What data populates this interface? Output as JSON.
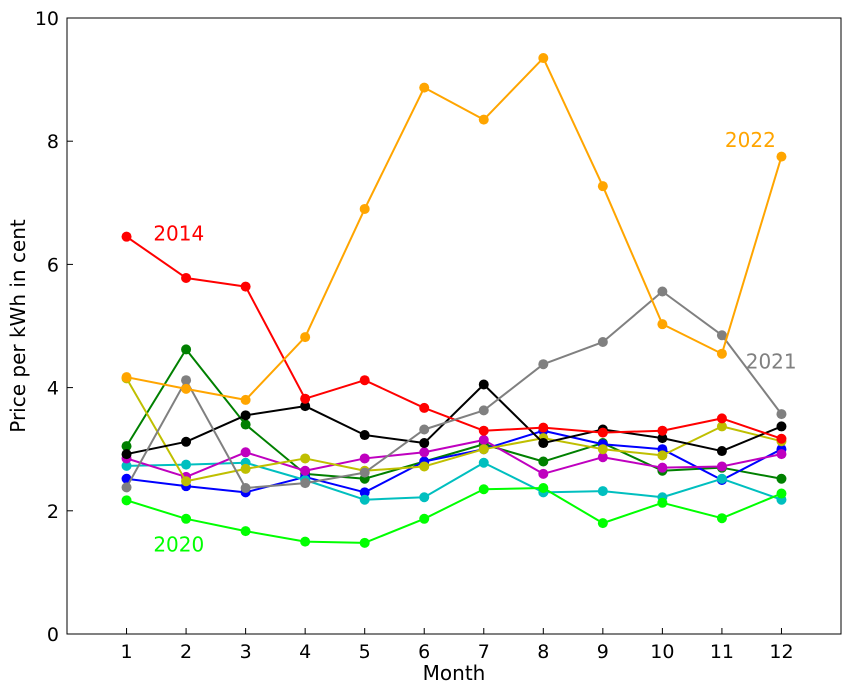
{
  "chart_data": {
    "type": "line",
    "title": "",
    "xlabel": "Month",
    "ylabel": "Price per kWh in cent",
    "x": [
      1,
      2,
      3,
      4,
      5,
      6,
      7,
      8,
      9,
      10,
      11,
      12
    ],
    "xlim": [
      0,
      13
    ],
    "ylim": [
      0,
      10
    ],
    "yticks": [
      0,
      2,
      4,
      6,
      8,
      10
    ],
    "grid": false,
    "series": [
      {
        "color": "#008000",
        "values": [
          3.05,
          4.62,
          3.4,
          2.6,
          2.52,
          2.8,
          3.08,
          2.8,
          3.1,
          2.65,
          2.7,
          2.52
        ]
      },
      {
        "color": "#0000ff",
        "values": [
          2.52,
          2.4,
          2.3,
          2.55,
          2.3,
          2.8,
          3.0,
          3.3,
          3.08,
          3.0,
          2.5,
          3.0
        ]
      },
      {
        "color": "#00bfbf",
        "values": [
          2.73,
          2.75,
          2.78,
          2.5,
          2.18,
          2.22,
          2.78,
          2.3,
          2.32,
          2.22,
          2.52,
          2.18
        ]
      },
      {
        "color": "#bf00bf",
        "values": [
          2.85,
          2.55,
          2.95,
          2.65,
          2.85,
          2.95,
          3.15,
          2.6,
          2.87,
          2.7,
          2.72,
          2.92
        ]
      },
      {
        "color": "#bfbf00",
        "values": [
          4.15,
          2.48,
          2.68,
          2.85,
          2.65,
          2.72,
          3.0,
          3.18,
          3.0,
          2.9,
          3.37,
          3.13
        ]
      },
      {
        "color": "#000000",
        "values": [
          2.92,
          3.12,
          3.55,
          3.7,
          3.23,
          3.1,
          4.05,
          3.1,
          3.32,
          3.18,
          2.97,
          3.37
        ]
      },
      {
        "color": "#ff0000",
        "values": [
          6.45,
          5.78,
          5.64,
          3.82,
          4.12,
          3.67,
          3.3,
          3.35,
          3.27,
          3.3,
          3.5,
          3.17
        ]
      },
      {
        "color": "#00ff00",
        "values": [
          2.17,
          1.87,
          1.67,
          1.5,
          1.48,
          1.87,
          2.35,
          2.37,
          1.8,
          2.13,
          1.88,
          2.28
        ]
      },
      {
        "color": "#808080",
        "values": [
          2.38,
          4.12,
          2.37,
          2.45,
          2.62,
          3.32,
          3.63,
          4.38,
          4.74,
          5.56,
          4.85,
          3.57
        ]
      },
      {
        "color": "#ffa500",
        "values": [
          4.17,
          3.98,
          3.8,
          4.82,
          6.9,
          8.87,
          8.35,
          9.35,
          7.27,
          5.03,
          4.55,
          7.75
        ]
      }
    ],
    "annotations": [
      {
        "text": "2014",
        "x": 1.45,
        "y": 6.5,
        "color": "#ff0000"
      },
      {
        "text": "2020",
        "x": 1.45,
        "y": 1.45,
        "color": "#00ff00"
      },
      {
        "text": "2021",
        "x": 11.4,
        "y": 4.42,
        "color": "#808080"
      },
      {
        "text": "2022",
        "x": 11.05,
        "y": 8.02,
        "color": "#ffa500"
      }
    ]
  }
}
